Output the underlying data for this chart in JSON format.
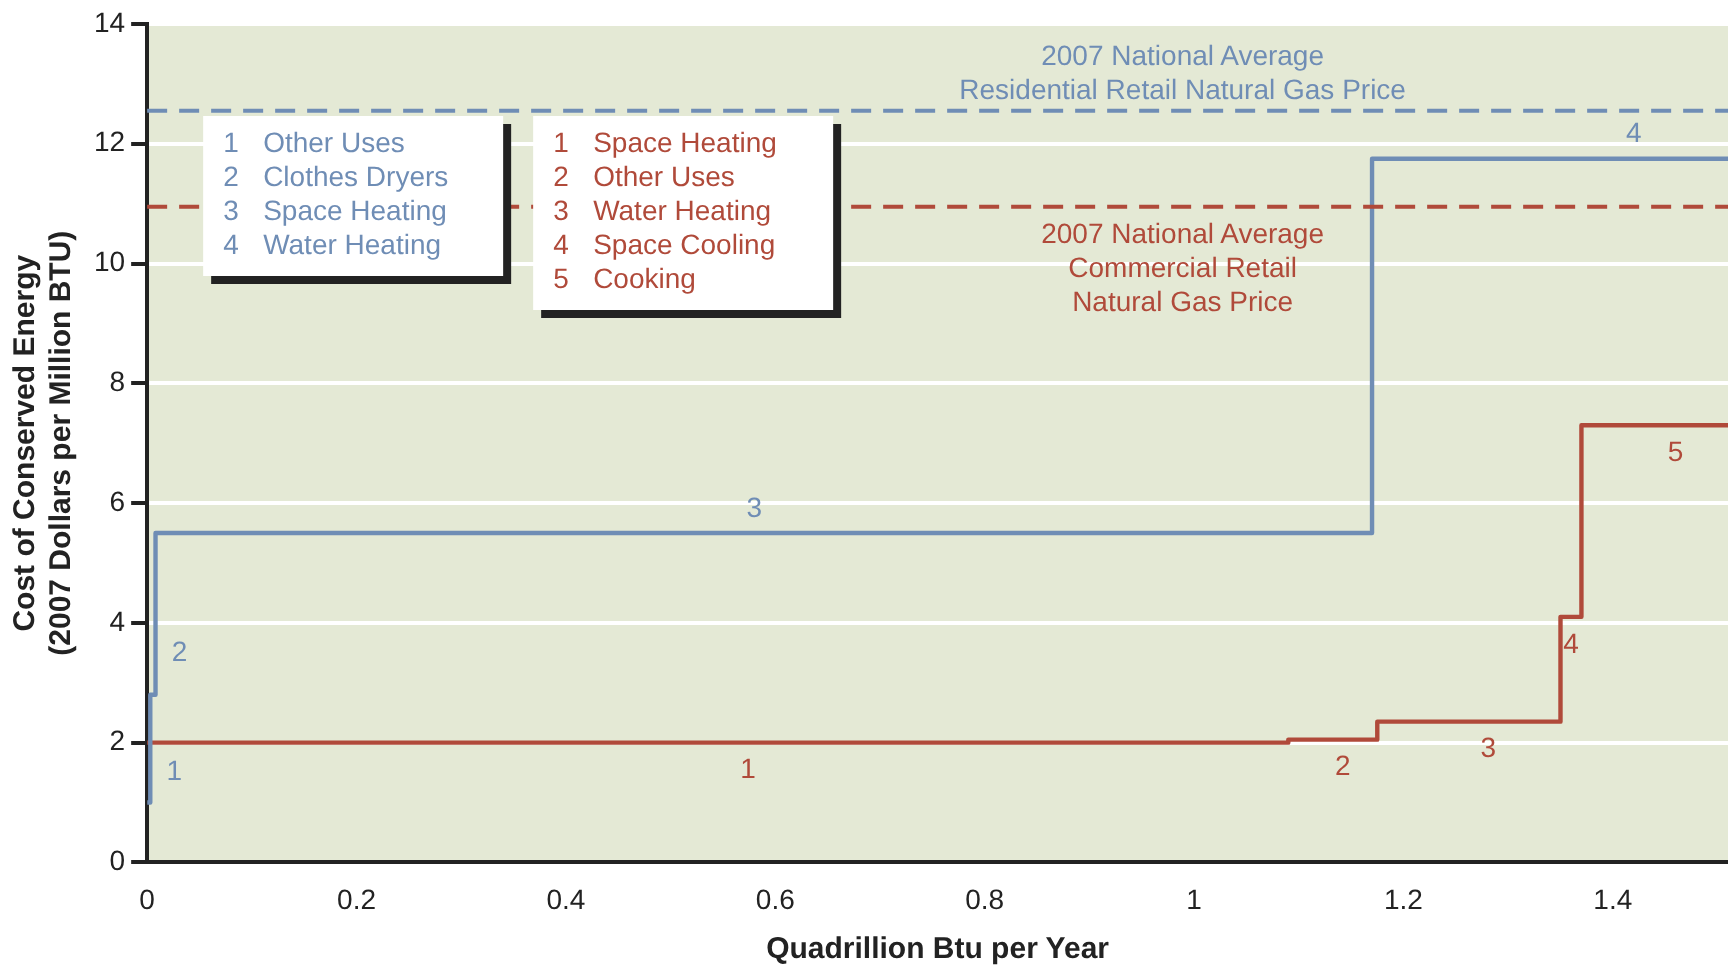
{
  "chart_data": {
    "type": "step",
    "xlabel": "Quadrillion Btu per Year",
    "ylabel": "Cost of Conserved Energy\n(2007 Dollars per Million BTU)",
    "series": [
      {
        "color": "#6f8db5",
        "x": [
          0,
          0.003,
          0.008,
          1.17,
          1.51
        ],
        "values": [
          1.0,
          2.8,
          5.5,
          11.75,
          11.75
        ]
      },
      {
        "color": "#b04a3a",
        "x": [
          0,
          1.09,
          1.175,
          1.35,
          1.37,
          1.51
        ],
        "values": [
          2.0,
          2.05,
          2.35,
          4.1,
          7.3,
          7.3
        ]
      }
    ],
    "xlim": [
      0,
      1.51
    ],
    "xticks": [
      0,
      0.2,
      0.4,
      0.6,
      0.8,
      1.0,
      1.2,
      1.4
    ],
    "ylim": [
      0,
      14
    ],
    "yticks": [
      0,
      2,
      4,
      6,
      8,
      10,
      12,
      14
    ],
    "grid": "y",
    "legend": false,
    "ref_lines": [
      {
        "axis": "y",
        "value": 12.55,
        "label": "2007 National Average\nResidential Retail Natural Gas Price",
        "color": "#6f8db5",
        "line_style": "dashed"
      },
      {
        "axis": "y",
        "value": 10.95,
        "label": "2007 National Average\nCommercial Retail\nNatural Gas Price",
        "color": "#b04a3a",
        "line_style": "dashed"
      }
    ],
    "annotations": [
      "1  Other Uses\n2  Clothes Dryers\n3  Space Heating\n4  Water Heating",
      "1  Space Heating\n2  Other Uses\n3  Water Heating\n4  Space Cooling\n5  Cooking",
      {
        "text": "1",
        "x": 0.003,
        "y": 1.5
      },
      {
        "text": "2",
        "x": 0.008,
        "y": 3.5
      },
      {
        "text": "3",
        "x": 0.58,
        "y": 5.5
      },
      {
        "text": "4",
        "x": 1.42,
        "y": 11.75
      },
      {
        "text": "1",
        "x": 0.574,
        "y": 2.0
      },
      {
        "text": "2",
        "x": 1.142,
        "y": 2.05
      },
      {
        "text": "3",
        "x": 1.281,
        "y": 2.35
      },
      {
        "text": "4",
        "x": 1.36,
        "y": 4.1
      },
      {
        "text": "5",
        "x": 1.46,
        "y": 7.3
      }
    ]
  }
}
